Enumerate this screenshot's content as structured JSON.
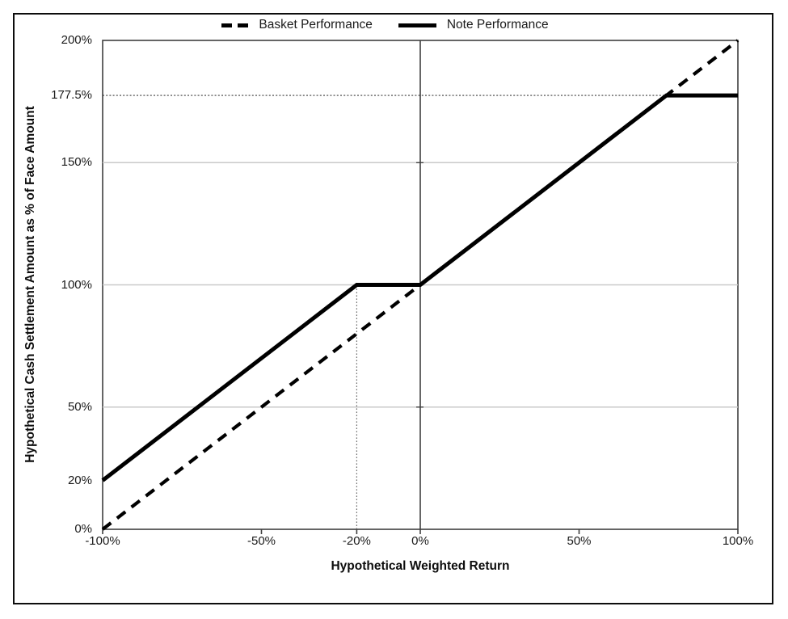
{
  "chart_data": {
    "type": "line",
    "title": "",
    "xlabel": "Hypothetical Weighted Return",
    "ylabel": "Hypothetical Cash Settlement Amount as % of Face Amount",
    "xlim": [
      -100,
      100
    ],
    "ylim": [
      0,
      200
    ],
    "legend_position": "top-center",
    "grid": "horizontal-major",
    "x_ticks": [
      {
        "value": -100,
        "label": "-100%"
      },
      {
        "value": -50,
        "label": "-50%"
      },
      {
        "value": -20,
        "label": "-20%"
      },
      {
        "value": 0,
        "label": "0%"
      },
      {
        "value": 50,
        "label": "50%"
      },
      {
        "value": 100,
        "label": "100%"
      }
    ],
    "y_ticks": [
      {
        "value": 0,
        "label": "0%"
      },
      {
        "value": 20,
        "label": "20%"
      },
      {
        "value": 50,
        "label": "50%"
      },
      {
        "value": 100,
        "label": "100%"
      },
      {
        "value": 150,
        "label": "150%"
      },
      {
        "value": 177.5,
        "label": "177.5%"
      },
      {
        "value": 200,
        "label": "200%"
      }
    ],
    "grid_y_values": [
      50,
      100,
      150
    ],
    "reference_lines": {
      "horizontal_dotted": {
        "y": 177.5,
        "x_from": -100,
        "x_to": 77.5
      },
      "vertical_dotted": {
        "x": -20,
        "y_from": 0,
        "y_to": 100
      },
      "vertical_axis_x": 0
    },
    "series": [
      {
        "name": "Basket Performance",
        "style": "dashed",
        "points": [
          [
            -100,
            0
          ],
          [
            100,
            200
          ]
        ]
      },
      {
        "name": "Note Performance",
        "style": "solid",
        "points": [
          [
            -100,
            20
          ],
          [
            -20,
            100
          ],
          [
            0,
            100
          ],
          [
            77.5,
            177.5
          ],
          [
            100,
            177.5
          ]
        ]
      }
    ],
    "colors": {
      "line": "#000000",
      "grid": "#c9c9c9",
      "axis": "#3f3f3f",
      "dotted_ref": "#3a3a3a",
      "text": "#1a1a1a"
    }
  }
}
